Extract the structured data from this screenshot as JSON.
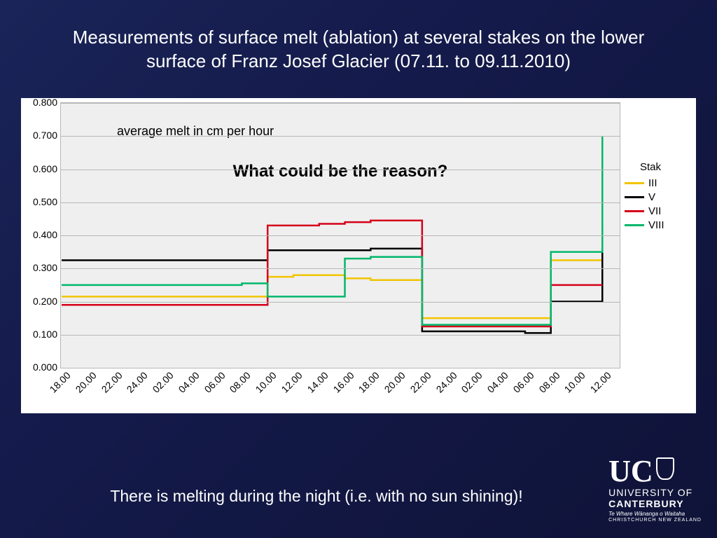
{
  "title": "Measurements of surface melt (ablation) at several stakes on the lower surface of Franz Josef Glacier (07.11. to 09.11.2010)",
  "caption": "There is melting during the night (i.e. with no sun shining)!",
  "logo": {
    "initials": "UC",
    "line1": "UNIVERSITY OF",
    "line2": "CANTERBURY",
    "maori": "Te Whare Wānanga o Waitaha",
    "city": "CHRISTCHURCH NEW ZEALAND"
  },
  "chart": {
    "type": "line-step",
    "background_color": "#efefef",
    "grid_color": "#b7b7b7",
    "panel_bg": "#ffffff",
    "subtitle": "average melt in cm per hour",
    "question": "What could be the reason?",
    "ylim": [
      0.0,
      0.8
    ],
    "ytick_step": 0.1,
    "y_ticks": [
      "0.000",
      "0.100",
      "0.200",
      "0.300",
      "0.400",
      "0.500",
      "0.600",
      "0.700",
      "0.800"
    ],
    "x_labels": [
      "18.00",
      "20.00",
      "22.00",
      "24.00",
      "02.00",
      "04.00",
      "06.00",
      "08.00",
      "10.00",
      "12.00",
      "14.00",
      "16.00",
      "18.00",
      "20.00",
      "22.00",
      "24.00",
      "02.00",
      "04.00",
      "06.00",
      "08.00",
      "10.00",
      "12.00"
    ],
    "legend_title": "Stak",
    "line_width": 2.5,
    "label_fontsize": 14,
    "subtitle_fontsize": 18,
    "question_fontsize": 24,
    "series": [
      {
        "name": "III",
        "color": "#f2c400",
        "values": [
          0.215,
          0.215,
          0.215,
          0.215,
          0.215,
          0.215,
          0.215,
          0.215,
          0.275,
          0.28,
          0.28,
          0.27,
          0.265,
          0.265,
          0.15,
          0.15,
          0.15,
          0.15,
          0.15,
          0.325,
          0.325,
          0.6
        ]
      },
      {
        "name": "V",
        "color": "#000000",
        "values": [
          0.325,
          0.325,
          0.325,
          0.325,
          0.325,
          0.325,
          0.325,
          0.325,
          0.355,
          0.355,
          0.355,
          0.355,
          0.36,
          0.36,
          0.11,
          0.11,
          0.11,
          0.11,
          0.105,
          0.2,
          0.2,
          0.45
        ]
      },
      {
        "name": "VII",
        "color": "#d4001a",
        "values": [
          0.19,
          0.19,
          0.19,
          0.19,
          0.19,
          0.19,
          0.19,
          0.19,
          0.43,
          0.43,
          0.435,
          0.44,
          0.445,
          0.445,
          0.125,
          0.125,
          0.125,
          0.125,
          0.125,
          0.25,
          0.25,
          0.25
        ]
      },
      {
        "name": "VIII",
        "color": "#00b76c",
        "values": [
          0.25,
          0.25,
          0.25,
          0.25,
          0.25,
          0.25,
          0.25,
          0.255,
          0.215,
          0.215,
          0.215,
          0.33,
          0.335,
          0.335,
          0.13,
          0.13,
          0.13,
          0.13,
          0.13,
          0.35,
          0.35,
          0.7
        ]
      }
    ]
  }
}
